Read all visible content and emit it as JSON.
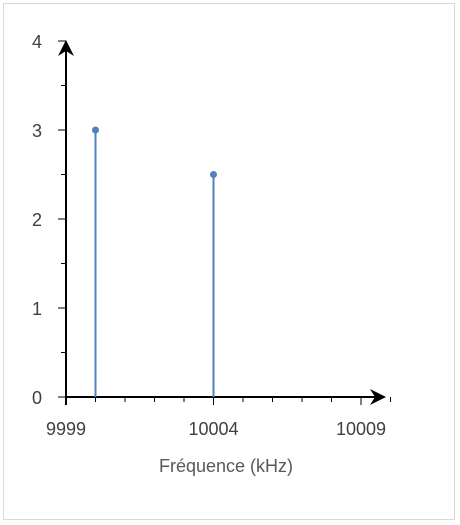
{
  "chart_data": {
    "type": "scatter",
    "style": "stem",
    "title": "",
    "xlabel": "Fréquence (kHz)",
    "ylabel": "",
    "xlim": [
      9999,
      10010
    ],
    "ylim": [
      0,
      4
    ],
    "x_ticks": [
      9999,
      10004,
      10009
    ],
    "y_ticks": [
      0,
      1,
      2,
      3,
      4
    ],
    "x_minor_step": 1,
    "y_minor_step": 0.5,
    "grid": false,
    "legend": "none",
    "series": [
      {
        "points": [
          {
            "x": 10000,
            "y": 3
          },
          {
            "x": 10004,
            "y": 2.5
          }
        ]
      }
    ],
    "colors": {
      "series": "#4f81bd",
      "axis": "#000000",
      "text": "#404040"
    }
  }
}
